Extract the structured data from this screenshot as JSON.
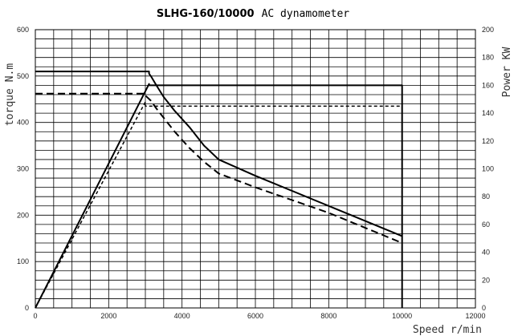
{
  "chart_data": {
    "type": "line",
    "title_bold": "SLHG-160/10000",
    "title_rest": "AC dynamometer",
    "xlabel": "Speed r/min",
    "ylabel_left": "torque N.m",
    "ylabel_right": "Power KW",
    "xlim": [
      0,
      12000
    ],
    "ylim_left": [
      0,
      600
    ],
    "ylim_right": [
      0,
      200
    ],
    "x_ticks": [
      "0",
      "2000",
      "4000",
      "6000",
      "8000",
      "10000",
      "12000"
    ],
    "y_left_ticks": [
      "0",
      "100",
      "200",
      "300",
      "400",
      "500",
      "600"
    ],
    "y_right_ticks": [
      "0",
      "20",
      "40",
      "60",
      "80",
      "100",
      "120",
      "140",
      "160",
      "180",
      "200"
    ],
    "grid": true,
    "series": [
      {
        "axis": "left",
        "style": "solid",
        "x": [
          0,
          3100,
          3100,
          3150,
          3300,
          3500,
          3800,
          4200,
          4600,
          5000,
          6000,
          8000,
          10000
        ],
        "y": [
          510,
          510,
          505,
          500,
          480,
          455,
          425,
          390,
          350,
          320,
          285,
          220,
          155
        ]
      },
      {
        "axis": "left",
        "style": "dashed",
        "x": [
          0,
          3000,
          3000,
          3150,
          3300,
          3500,
          3800,
          4200,
          4600,
          5000,
          6000,
          8000,
          10000
        ],
        "y": [
          462,
          462,
          458,
          447,
          430,
          410,
          380,
          345,
          315,
          290,
          260,
          205,
          140
        ]
      },
      {
        "axis": "right",
        "style": "solid",
        "x": [
          0,
          3100,
          3100,
          10000,
          10000
        ],
        "y": [
          0,
          161,
          160,
          160,
          0
        ]
      },
      {
        "axis": "right",
        "style": "dotted",
        "x": [
          0,
          3000,
          3000,
          10000,
          10000
        ],
        "y": [
          0,
          148,
          145,
          145,
          0
        ]
      }
    ]
  }
}
